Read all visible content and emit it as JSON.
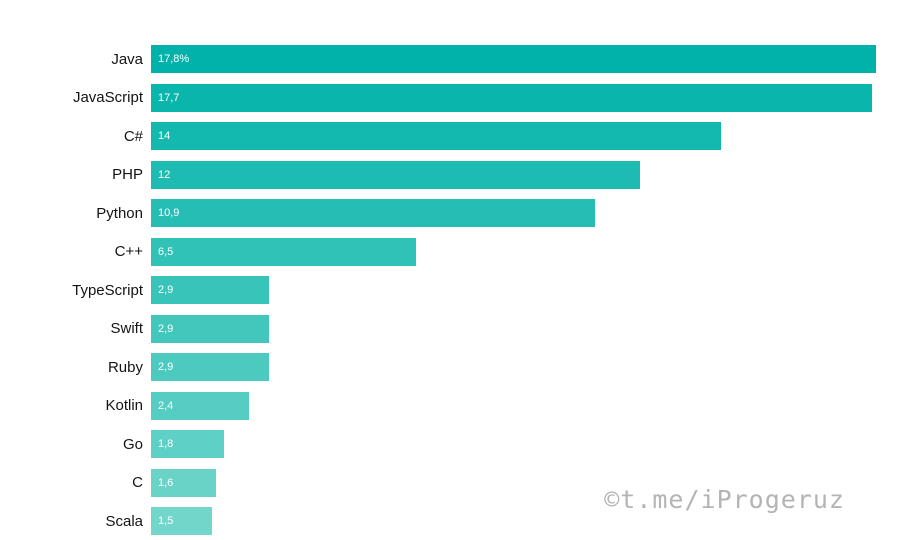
{
  "chart_data": {
    "type": "bar",
    "orientation": "horizontal",
    "title": "",
    "xlabel": "",
    "ylabel": "",
    "grid": false,
    "legend": false,
    "xlim": [
      0,
      18.3
    ],
    "categories": [
      "Java",
      "JavaScript",
      "C#",
      "PHP",
      "Python",
      "C++",
      "TypeScript",
      "Swift",
      "Ruby",
      "Kotlin",
      "Go",
      "C",
      "Scala"
    ],
    "values": [
      17.8,
      17.7,
      14,
      12,
      10.9,
      6.5,
      2.9,
      2.9,
      2.9,
      2.4,
      1.8,
      1.6,
      1.5
    ],
    "value_labels": [
      "17,8%",
      "17,7",
      "14",
      "12",
      "10,9",
      "6,5",
      "2,9",
      "2,9",
      "2,9",
      "2,4",
      "1,8",
      "1,6",
      "1,5"
    ],
    "bar_colors": [
      "#00b2a9",
      "#0ab5ac",
      "#13b8af",
      "#1dbbb2",
      "#26beb4",
      "#30c1b7",
      "#39c4ba",
      "#43c7bd",
      "#4ccac0",
      "#56cdc3",
      "#5fd0c5",
      "#69d3c8",
      "#72d6cb"
    ]
  },
  "watermark": "©t.me/iProgeruz",
  "colors": {
    "background": "#ffffff",
    "label_text": "#141414",
    "value_text": "#ffffff",
    "watermark": "#b4b4b4"
  }
}
